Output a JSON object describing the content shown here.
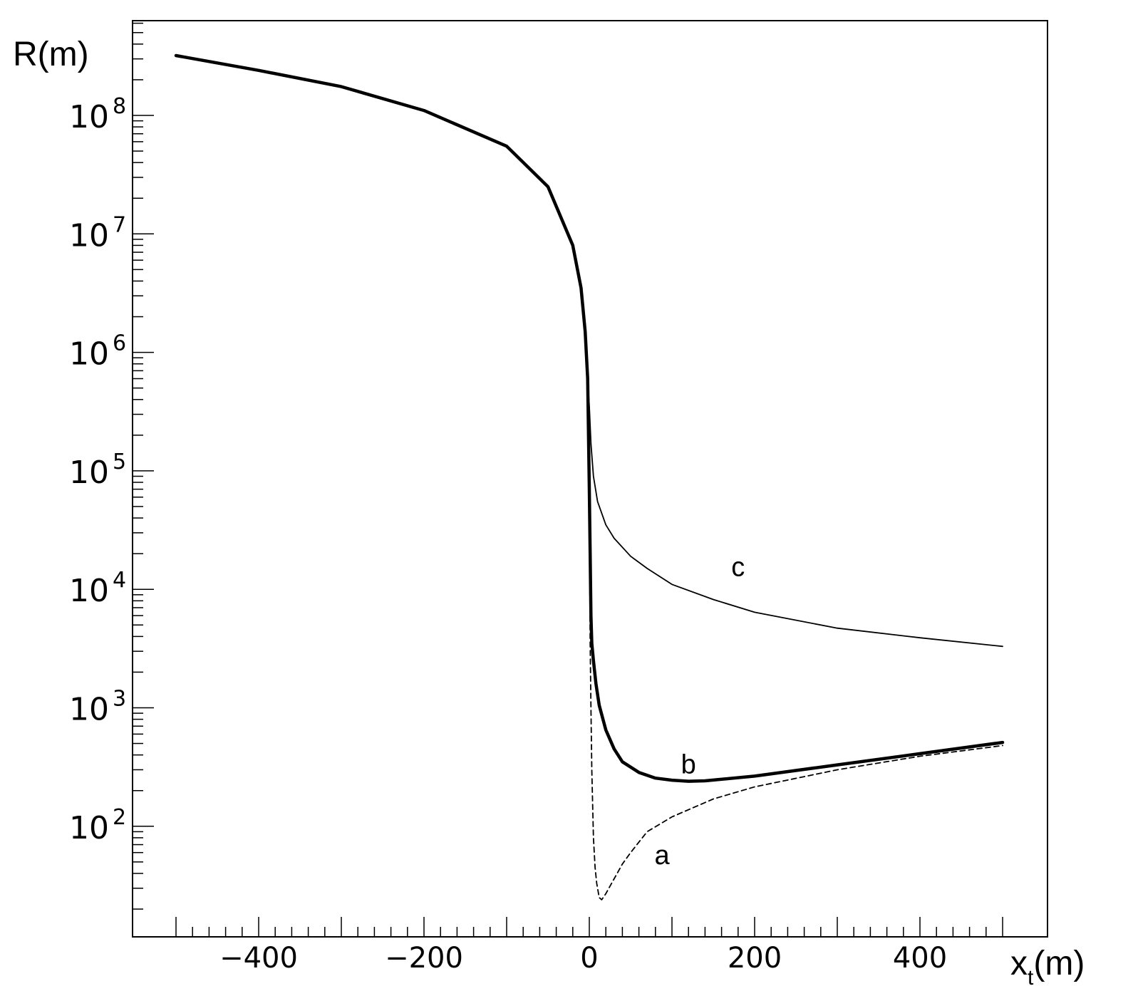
{
  "chart_data": {
    "type": "line",
    "title": "",
    "xlabel": {
      "main": "x",
      "sub": "t",
      "unit": "(m)"
    },
    "ylabel": "R(m)",
    "xlim": [
      -560,
      550
    ],
    "ylim": [
      5,
      1000000000
    ],
    "yscale": "log",
    "grid": false,
    "x_ticks": [
      {
        "value": -400,
        "label": "−400"
      },
      {
        "value": -200,
        "label": "−200"
      },
      {
        "value": 0,
        "label": "0"
      },
      {
        "value": 200,
        "label": "200"
      },
      {
        "value": 400,
        "label": "400"
      }
    ],
    "y_ticks": [
      {
        "value": 100,
        "base": "10",
        "exp": "2"
      },
      {
        "value": 1000,
        "base": "10",
        "exp": "3"
      },
      {
        "value": 10000,
        "base": "10",
        "exp": "4"
      },
      {
        "value": 100000,
        "base": "10",
        "exp": "5"
      },
      {
        "value": 1000000,
        "base": "10",
        "exp": "6"
      },
      {
        "value": 10000000,
        "base": "10",
        "exp": "7"
      },
      {
        "value": 100000000,
        "base": "10",
        "exp": "8"
      }
    ],
    "series": [
      {
        "name": "a",
        "style": "dashed",
        "x": [
          -500,
          -400,
          -300,
          -200,
          -100,
          -50,
          -20,
          -10,
          -5,
          -2,
          0,
          1,
          2,
          3,
          5,
          7,
          9,
          12,
          15,
          20,
          30,
          40,
          50,
          70,
          100,
          150,
          200,
          300,
          400,
          500
        ],
        "y": [
          320000000,
          240000000,
          175000000,
          110000000,
          55000000,
          25000000,
          8000000,
          3500000,
          1500000,
          600000,
          70000,
          3500,
          1000,
          300,
          80,
          45,
          33,
          25,
          24,
          27,
          36,
          48,
          60,
          90,
          120,
          170,
          215,
          300,
          390,
          480
        ],
        "label": {
          "text": "a",
          "x": 88,
          "y": 48
        }
      },
      {
        "name": "b",
        "style": "thick",
        "x": [
          -500,
          -400,
          -300,
          -200,
          -100,
          -50,
          -20,
          -10,
          -5,
          -2,
          0,
          1,
          2,
          3,
          5,
          8,
          12,
          20,
          30,
          40,
          60,
          80,
          100,
          120,
          140,
          200,
          300,
          400,
          500
        ],
        "y": [
          320000000,
          240000000,
          175000000,
          110000000,
          55000000,
          25000000,
          8000000,
          3500000,
          1500000,
          600000,
          70000,
          20000,
          6000,
          3500,
          2500,
          1600,
          1050,
          650,
          450,
          350,
          285,
          255,
          245,
          240,
          242,
          265,
          330,
          410,
          510
        ],
        "label": {
          "text": "b",
          "x": 120,
          "y": 280
        }
      },
      {
        "name": "c",
        "style": "thin",
        "x": [
          -500,
          -400,
          -300,
          -200,
          -100,
          -50,
          -20,
          -10,
          -5,
          -2,
          0,
          2,
          5,
          10,
          20,
          30,
          50,
          70,
          100,
          150,
          200,
          300,
          400,
          500
        ],
        "y": [
          320000000,
          240000000,
          175000000,
          110000000,
          55000000,
          25000000,
          8000000,
          3500000,
          1500000,
          600000,
          350000,
          170000,
          90000,
          55000,
          35000,
          27000,
          19000,
          15000,
          11000,
          8200,
          6400,
          4700,
          3900,
          3300
        ],
        "label": {
          "text": "c",
          "x": 180,
          "y": 13000
        }
      }
    ]
  }
}
